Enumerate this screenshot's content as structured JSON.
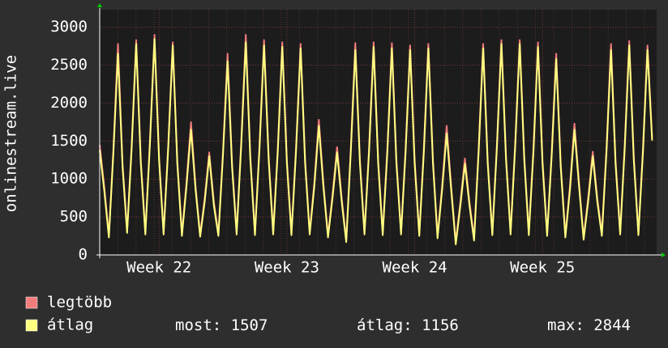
{
  "chart_data": {
    "type": "line",
    "y_label": "onlinestream.live",
    "xlim": [
      0,
      122
    ],
    "xticks": [
      {
        "value": 13,
        "label": "Week 22"
      },
      {
        "value": 41,
        "label": "Week 23"
      },
      {
        "value": 69,
        "label": "Week 24"
      },
      {
        "value": 97,
        "label": "Week 25"
      }
    ],
    "ylim": [
      0,
      3230
    ],
    "yticks": [
      0,
      500,
      1000,
      1500,
      2000,
      2500,
      3000
    ],
    "grid": true,
    "series": [
      {
        "name": "legtöbb",
        "color": "#f27c7c",
        "values": [
          1450,
          900,
          260,
          1400,
          2780,
          1200,
          320,
          1450,
          2830,
          1250,
          300,
          1500,
          2900,
          1300,
          300,
          1450,
          2800,
          1250,
          280,
          950,
          1750,
          900,
          270,
          750,
          1350,
          700,
          280,
          1350,
          2650,
          1200,
          300,
          1500,
          2900,
          1300,
          290,
          1450,
          2830,
          1300,
          300,
          1400,
          2800,
          1250,
          290,
          1400,
          2780,
          1250,
          300,
          950,
          1780,
          950,
          260,
          800,
          1420,
          750,
          200,
          1400,
          2790,
          1250,
          300,
          1400,
          2800,
          1250,
          290,
          1400,
          2790,
          1250,
          300,
          1400,
          2760,
          1250,
          280,
          1400,
          2780,
          1250,
          250,
          900,
          1700,
          900,
          170,
          700,
          1270,
          700,
          220,
          1400,
          2780,
          1250,
          290,
          1450,
          2830,
          1300,
          300,
          1450,
          2830,
          1300,
          290,
          1400,
          2800,
          1250,
          280,
          1350,
          2650,
          1200,
          260,
          900,
          1730,
          950,
          230,
          750,
          1360,
          750,
          280,
          1400,
          2780,
          1250,
          300,
          1450,
          2820,
          1300,
          290,
          1400,
          2760,
          1550
        ]
      },
      {
        "name": "átlag",
        "color": "#ffff80",
        "values": [
          1380,
          850,
          230,
          1350,
          2650,
          1150,
          290,
          1400,
          2780,
          1200,
          270,
          1450,
          2844,
          1250,
          270,
          1400,
          2760,
          1200,
          250,
          900,
          1650,
          850,
          240,
          700,
          1300,
          650,
          250,
          1300,
          2550,
          1150,
          270,
          1450,
          2800,
          1250,
          260,
          1400,
          2760,
          1250,
          270,
          1350,
          2740,
          1200,
          260,
          1350,
          2720,
          1200,
          270,
          900,
          1700,
          900,
          230,
          750,
          1350,
          700,
          170,
          1350,
          2700,
          1200,
          270,
          1350,
          2740,
          1200,
          260,
          1350,
          2720,
          1200,
          270,
          1350,
          2700,
          1200,
          250,
          1350,
          2720,
          1200,
          220,
          850,
          1600,
          850,
          140,
          650,
          1200,
          650,
          190,
          1350,
          2720,
          1200,
          260,
          1400,
          2780,
          1250,
          270,
          1400,
          2780,
          1250,
          260,
          1350,
          2740,
          1200,
          250,
          1300,
          2580,
          1150,
          230,
          850,
          1650,
          900,
          200,
          700,
          1300,
          700,
          250,
          1350,
          2700,
          1200,
          270,
          1400,
          2760,
          1250,
          260,
          1350,
          2700,
          1507
        ]
      }
    ],
    "stats": [
      {
        "label": "most:",
        "value": 1507
      },
      {
        "label": "átlag:",
        "value": 1156
      },
      {
        "label": "max:",
        "value": 2844
      }
    ]
  }
}
